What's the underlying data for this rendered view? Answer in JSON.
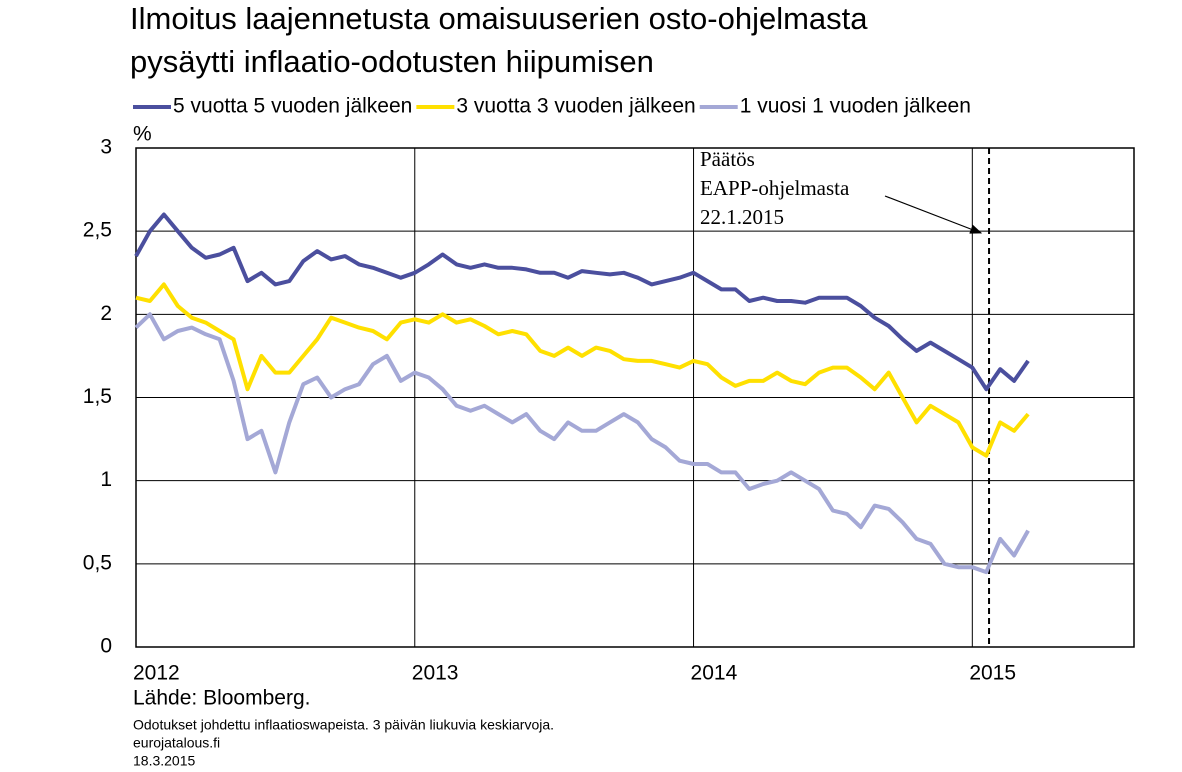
{
  "chart_data": {
    "type": "line",
    "title_lines": [
      "Ilmoitus laajennetusta omaisuuserien osto-ohjelmasta",
      "pysäytti inflaatio-odotusten hiipumisen"
    ],
    "y_unit": "%",
    "x": [
      2012.0,
      2012.05,
      2012.1,
      2012.15,
      2012.2,
      2012.25,
      2012.3,
      2012.35,
      2012.4,
      2012.45,
      2012.5,
      2012.55,
      2012.6,
      2012.65,
      2012.7,
      2012.75,
      2012.8,
      2012.85,
      2012.9,
      2012.95,
      2013.0,
      2013.05,
      2013.1,
      2013.15,
      2013.2,
      2013.25,
      2013.3,
      2013.35,
      2013.4,
      2013.45,
      2013.5,
      2013.55,
      2013.6,
      2013.65,
      2013.7,
      2013.75,
      2013.8,
      2013.85,
      2013.9,
      2013.95,
      2014.0,
      2014.05,
      2014.1,
      2014.15,
      2014.2,
      2014.25,
      2014.3,
      2014.35,
      2014.4,
      2014.45,
      2014.5,
      2014.55,
      2014.6,
      2014.65,
      2014.7,
      2014.75,
      2014.8,
      2014.85,
      2014.9,
      2014.95,
      2015.0,
      2015.05,
      2015.1,
      2015.15,
      2015.2
    ],
    "series": [
      {
        "name": "5 vuotta 5 vuoden jälkeen",
        "color": "#4b4f9e",
        "values": [
          2.35,
          2.5,
          2.6,
          2.5,
          2.4,
          2.34,
          2.36,
          2.4,
          2.2,
          2.25,
          2.18,
          2.2,
          2.32,
          2.38,
          2.33,
          2.35,
          2.3,
          2.28,
          2.25,
          2.22,
          2.25,
          2.3,
          2.36,
          2.3,
          2.28,
          2.3,
          2.28,
          2.28,
          2.27,
          2.25,
          2.25,
          2.22,
          2.26,
          2.25,
          2.24,
          2.25,
          2.22,
          2.18,
          2.2,
          2.22,
          2.25,
          2.2,
          2.15,
          2.15,
          2.08,
          2.1,
          2.08,
          2.08,
          2.07,
          2.1,
          2.1,
          2.1,
          2.05,
          1.98,
          1.93,
          1.85,
          1.78,
          1.83,
          1.78,
          1.73,
          1.68,
          1.55,
          1.67,
          1.6,
          1.72
        ]
      },
      {
        "name": "3 vuotta 3 vuoden jälkeen",
        "color": "#ffe000",
        "values": [
          2.1,
          2.08,
          2.18,
          2.05,
          1.98,
          1.95,
          1.9,
          1.85,
          1.55,
          1.75,
          1.65,
          1.65,
          1.75,
          1.85,
          1.98,
          1.95,
          1.92,
          1.9,
          1.85,
          1.95,
          1.97,
          1.95,
          2.0,
          1.95,
          1.97,
          1.93,
          1.88,
          1.9,
          1.88,
          1.78,
          1.75,
          1.8,
          1.75,
          1.8,
          1.78,
          1.73,
          1.72,
          1.72,
          1.7,
          1.68,
          1.72,
          1.7,
          1.62,
          1.57,
          1.6,
          1.6,
          1.65,
          1.6,
          1.58,
          1.65,
          1.68,
          1.68,
          1.62,
          1.55,
          1.65,
          1.5,
          1.35,
          1.45,
          1.4,
          1.35,
          1.2,
          1.15,
          1.35,
          1.3,
          1.4
        ]
      },
      {
        "name": "1 vuosi 1 vuoden jälkeen",
        "color": "#a4a8d6",
        "values": [
          1.92,
          2.0,
          1.85,
          1.9,
          1.92,
          1.88,
          1.85,
          1.6,
          1.25,
          1.3,
          1.05,
          1.35,
          1.58,
          1.62,
          1.5,
          1.55,
          1.58,
          1.7,
          1.75,
          1.6,
          1.65,
          1.62,
          1.55,
          1.45,
          1.42,
          1.45,
          1.4,
          1.35,
          1.4,
          1.3,
          1.25,
          1.35,
          1.3,
          1.3,
          1.35,
          1.4,
          1.35,
          1.25,
          1.2,
          1.12,
          1.1,
          1.1,
          1.05,
          1.05,
          0.95,
          0.98,
          1.0,
          1.05,
          1.0,
          0.95,
          0.82,
          0.8,
          0.72,
          0.85,
          0.83,
          0.75,
          0.65,
          0.62,
          0.5,
          0.48,
          0.48,
          0.45,
          0.65,
          0.55,
          0.7
        ]
      }
    ],
    "xlim": [
      2012,
      2015.58
    ],
    "xticks": [
      2012,
      2013,
      2014,
      2015
    ],
    "ylim": [
      0,
      3
    ],
    "yticks": [
      0,
      {
        "value": 0.5,
        "label": "0,5"
      },
      1,
      {
        "value": 1.5,
        "label": "1,5"
      },
      2,
      {
        "value": 2.5,
        "label": "2,5"
      },
      3
    ],
    "grid": true,
    "annotation": {
      "lines": [
        "Päätös",
        "EAPP-ohjelmasta",
        "22.1.2015"
      ],
      "x": 2015.06
    },
    "footer": {
      "source": "Lähde: Bloomberg.",
      "notes": [
        "Odotukset johdettu inflaatioswapeista. 3 päivän liukuvia keskiarvoja.",
        "eurojatalous.fi",
        "18.3.2015"
      ]
    }
  }
}
